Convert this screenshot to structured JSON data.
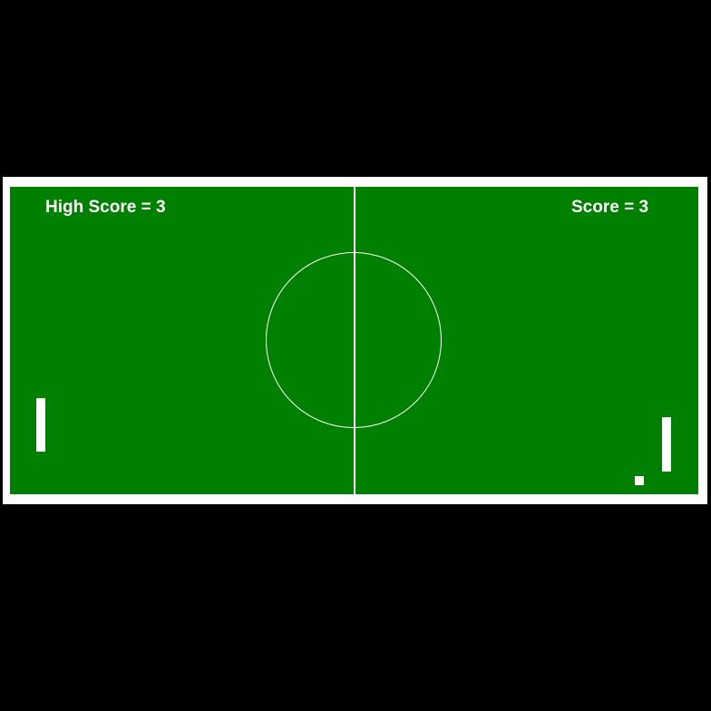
{
  "game": {
    "high_score_text": "High Score = 3",
    "score_text": "Score = 3",
    "high_score": 3,
    "score": 3
  },
  "colors": {
    "background": "#000000",
    "field": "#008000",
    "lines": "#ffffff"
  }
}
